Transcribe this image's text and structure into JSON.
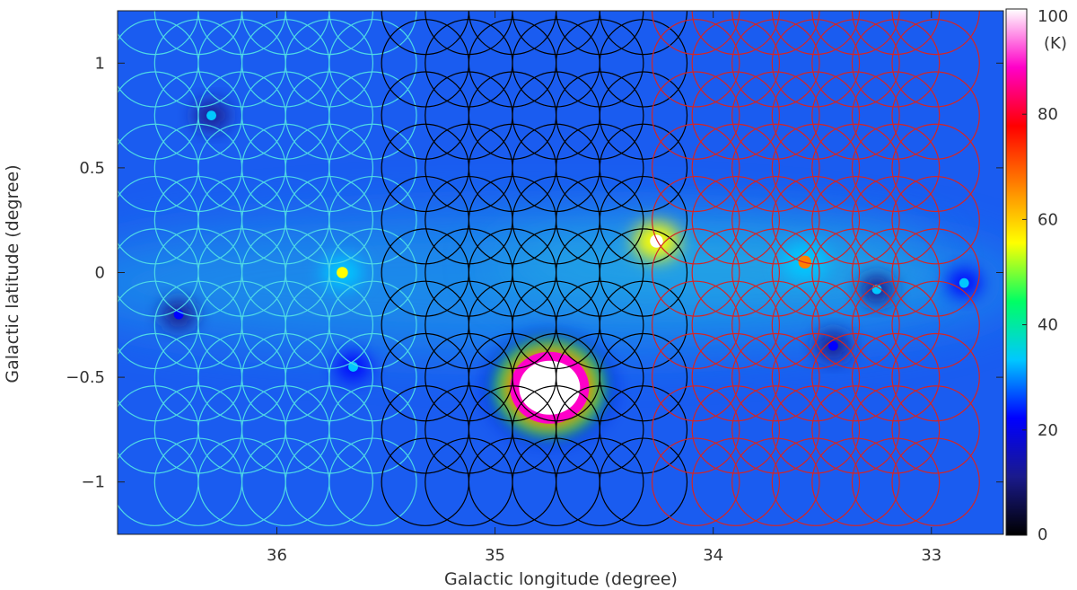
{
  "chart_data": {
    "type": "heatmap",
    "title": "",
    "xlabel": "Galactic longitude (degree)",
    "ylabel": "Galactic latitude (degree)",
    "xlim": [
      36.73,
      32.67
    ],
    "ylim": [
      -1.25,
      1.25
    ],
    "x_ticks": [
      36,
      35,
      34,
      33
    ],
    "x_tick_labels": [
      "36",
      "35",
      "34",
      "33"
    ],
    "y_ticks": [
      1,
      0.5,
      0,
      -0.5,
      -1
    ],
    "y_tick_labels": [
      "1",
      "0.5",
      "0",
      "−0.5",
      "−1"
    ],
    "colorbar": {
      "label": "(K)",
      "range": [
        0,
        100
      ],
      "ticks": [
        0,
        20,
        40,
        60,
        80,
        100
      ],
      "tick_labels": [
        "0",
        "20",
        "40",
        "60",
        "80",
        "100"
      ],
      "colormap": [
        "#000000",
        "#1a1a8c",
        "#0000ff",
        "#00c8ff",
        "#00ff64",
        "#ffff00",
        "#ff8000",
        "#ff0000",
        "#ff00c8",
        "#ffffff"
      ]
    },
    "beam_grids": [
      {
        "color": "#4fd9e6",
        "x_range": [
          36.56,
          35.56
        ],
        "y_values": [
          1.25,
          1.0,
          0.75,
          0.5,
          0.25,
          0.0,
          -0.25,
          -0.5,
          -0.75,
          -1.0
        ],
        "radius_deg": 0.2
      },
      {
        "color": "#000000",
        "x_range": [
          35.32,
          34.32
        ],
        "y_values": [
          1.25,
          1.0,
          0.75,
          0.5,
          0.25,
          0.0,
          -0.25,
          -0.5,
          -0.75,
          -1.0
        ],
        "radius_deg": 0.2
      },
      {
        "color": "#d42525",
        "x_range": [
          34.08,
          32.98
        ],
        "y_values": [
          1.25,
          1.0,
          0.75,
          0.5,
          0.25,
          0.0,
          -0.25,
          -0.5,
          -0.75,
          -1.0
        ],
        "radius_deg": 0.2
      }
    ],
    "emission_features": [
      {
        "l": 34.75,
        "b": -0.55,
        "peak_K": 100
      },
      {
        "l": 34.26,
        "b": 0.15,
        "peak_K": 100
      },
      {
        "l": 33.58,
        "b": 0.05,
        "peak_K": 70
      },
      {
        "l": 35.7,
        "b": 0.0,
        "peak_K": 55
      },
      {
        "l": 35.65,
        "b": -0.45,
        "peak_K": 35
      },
      {
        "l": 32.85,
        "b": -0.05,
        "peak_K": 35
      },
      {
        "l": 33.25,
        "b": -0.08,
        "peak_K": 30
      },
      {
        "l": 36.3,
        "b": 0.75,
        "peak_K": 30
      },
      {
        "l": 36.45,
        "b": -0.2,
        "peak_K": 25
      },
      {
        "l": 33.45,
        "b": -0.35,
        "peak_K": 25
      }
    ]
  }
}
